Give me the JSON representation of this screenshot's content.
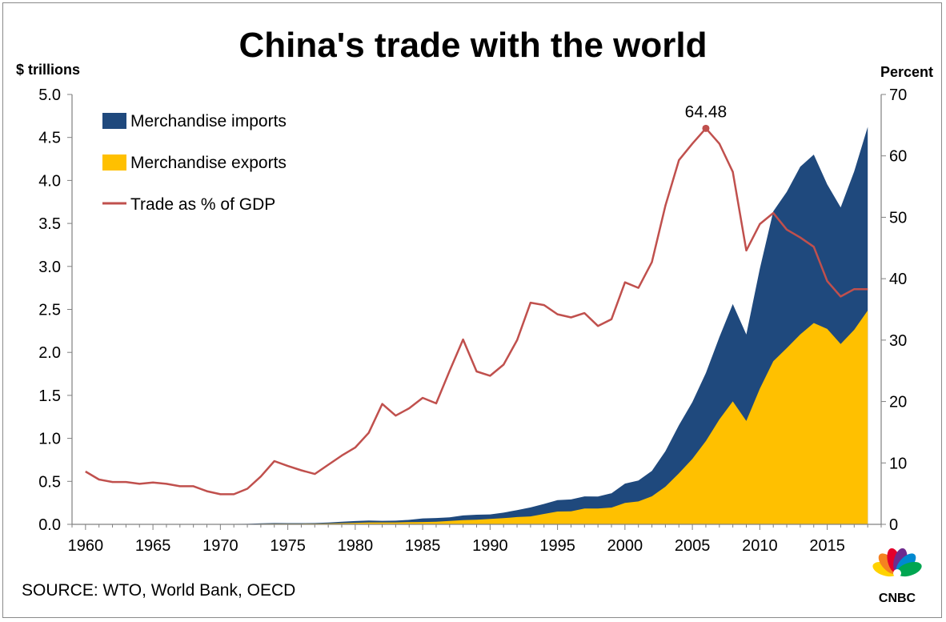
{
  "chart_data": {
    "type": "area",
    "title": "China's trade with the world",
    "y_left_label": "$ trillions",
    "y_right_label": "Percent",
    "source": "SOURCE: WTO, World Bank, OECD",
    "brand": "CNBC",
    "xlim": [
      1959,
      2019
    ],
    "ylim_left": [
      0,
      5
    ],
    "ylim_right": [
      0,
      70
    ],
    "x_ticks": [
      1960,
      1965,
      1970,
      1975,
      1980,
      1985,
      1990,
      1995,
      2000,
      2005,
      2010,
      2015
    ],
    "y_left_ticks": [
      "0.0",
      "0.5",
      "1.0",
      "1.5",
      "2.0",
      "2.5",
      "3.0",
      "3.5",
      "4.0",
      "4.5",
      "5.0"
    ],
    "y_right_ticks": [
      "0",
      "10",
      "20",
      "30",
      "40",
      "50",
      "60",
      "70"
    ],
    "legend_position": "top-left",
    "grid": false,
    "colors": {
      "imports": "#1f497d",
      "exports": "#ffc000",
      "trade_gdp": "#c0504d"
    },
    "peak_annotation": {
      "x": 2006,
      "label": "64.48"
    },
    "x": [
      1960,
      1961,
      1962,
      1963,
      1964,
      1965,
      1966,
      1967,
      1968,
      1969,
      1970,
      1971,
      1972,
      1973,
      1974,
      1975,
      1976,
      1977,
      1978,
      1979,
      1980,
      1981,
      1982,
      1983,
      1984,
      1985,
      1986,
      1987,
      1988,
      1989,
      1990,
      1991,
      1992,
      1993,
      1994,
      1995,
      1996,
      1997,
      1998,
      1999,
      2000,
      2001,
      2002,
      2003,
      2004,
      2005,
      2006,
      2007,
      2008,
      2009,
      2010,
      2011,
      2012,
      2013,
      2014,
      2015,
      2016,
      2017,
      2018
    ],
    "series": [
      {
        "name": "Merchandise imports",
        "type": "area",
        "axis": "left",
        "stacked_on": "Merchandise exports",
        "values": [
          0.002,
          0.001,
          0.001,
          0.001,
          0.002,
          0.002,
          0.002,
          0.002,
          0.002,
          0.002,
          0.002,
          0.002,
          0.003,
          0.005,
          0.008,
          0.007,
          0.007,
          0.007,
          0.011,
          0.016,
          0.02,
          0.022,
          0.019,
          0.021,
          0.026,
          0.042,
          0.043,
          0.043,
          0.055,
          0.059,
          0.053,
          0.064,
          0.081,
          0.104,
          0.116,
          0.132,
          0.139,
          0.142,
          0.14,
          0.166,
          0.225,
          0.244,
          0.295,
          0.413,
          0.561,
          0.66,
          0.792,
          0.956,
          1.132,
          1.006,
          1.396,
          1.743,
          1.818,
          1.95,
          1.959,
          1.68,
          1.588,
          1.842,
          2.136
        ]
      },
      {
        "name": "Merchandise exports",
        "type": "area",
        "axis": "left",
        "values": [
          0.002,
          0.001,
          0.001,
          0.001,
          0.002,
          0.002,
          0.002,
          0.002,
          0.002,
          0.002,
          0.002,
          0.003,
          0.003,
          0.006,
          0.007,
          0.007,
          0.007,
          0.008,
          0.01,
          0.014,
          0.018,
          0.022,
          0.022,
          0.022,
          0.026,
          0.027,
          0.031,
          0.039,
          0.048,
          0.053,
          0.062,
          0.072,
          0.085,
          0.092,
          0.121,
          0.149,
          0.151,
          0.183,
          0.184,
          0.195,
          0.249,
          0.266,
          0.326,
          0.438,
          0.593,
          0.762,
          0.969,
          1.22,
          1.43,
          1.202,
          1.578,
          1.898,
          2.049,
          2.209,
          2.342,
          2.273,
          2.098,
          2.263,
          2.487
        ]
      },
      {
        "name": "Trade as % of GDP",
        "type": "line",
        "axis": "right",
        "values": [
          8.6,
          7.3,
          6.9,
          6.9,
          6.6,
          6.8,
          6.6,
          6.2,
          6.2,
          5.4,
          4.9,
          4.9,
          5.8,
          7.8,
          10.3,
          9.5,
          8.8,
          8.2,
          9.7,
          11.2,
          12.5,
          14.9,
          19.6,
          17.7,
          18.9,
          20.6,
          19.7,
          25.0,
          30.1,
          24.9,
          24.2,
          26.0,
          30.0,
          36.1,
          35.7,
          34.2,
          33.7,
          34.4,
          32.3,
          33.4,
          39.4,
          38.5,
          42.7,
          51.9,
          59.3,
          62.0,
          64.48,
          62.0,
          57.4,
          44.6,
          48.9,
          50.7,
          48.0,
          46.7,
          45.2,
          39.6,
          37.1,
          38.3,
          38.3
        ]
      }
    ]
  }
}
